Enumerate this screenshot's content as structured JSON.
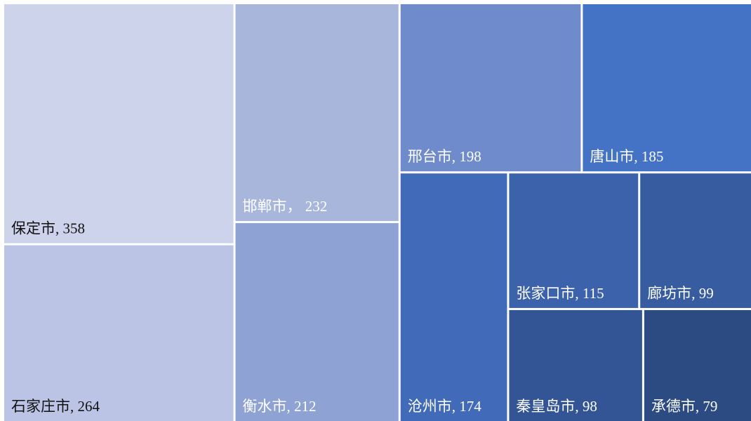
{
  "chart_data": {
    "type": "treemap",
    "value_labels": [
      "保定市, 358",
      "石家庄市, 264",
      "邯郸市， 232",
      "衡水市, 212",
      "邢台市, 198",
      "唐山市, 185",
      "沧州市, 174",
      "张家口市, 115",
      "廊坊市, 99",
      "秦皇岛市, 98",
      "承德市, 79"
    ],
    "values": [
      358,
      264,
      232,
      212,
      198,
      185,
      174,
      115,
      99,
      98,
      79
    ],
    "colors": [
      "#cdd3ea",
      "#bbc4e4",
      "#a8b6db",
      "#8fa2d4",
      "#6f8bcb",
      "#4472c4",
      "#416bb8",
      "#3d62ac",
      "#375ca0",
      "#335595",
      "#2d4b83"
    ]
  }
}
